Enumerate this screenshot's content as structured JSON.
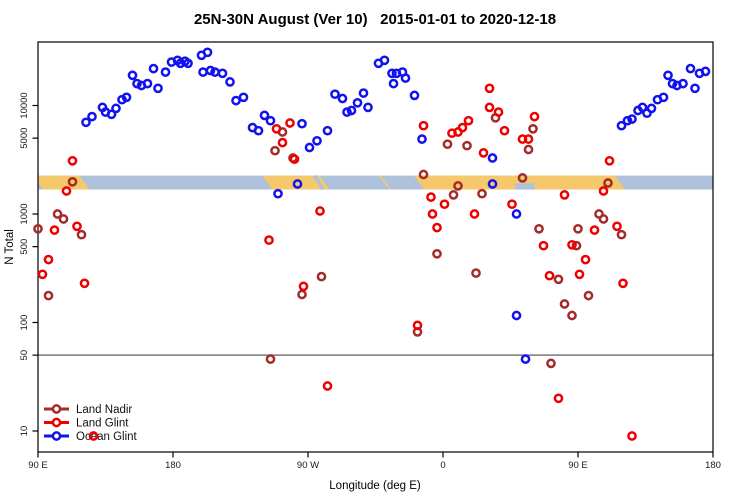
{
  "title": "25N-30N August (Ver 10)   2015-01-01 to 2020-12-18",
  "chart_data": {
    "type": "scatter",
    "title": "25N-30N August (Ver 10)  2015-01-01 to 2020-12-18",
    "xlabel": "Longitude (deg E)",
    "ylabel": "N Total",
    "x_axis": {
      "note": "axis wraps eastward from 90E; positions stored as deg east of 0 continuing past 360",
      "range": [
        90,
        540
      ],
      "ticks": [
        90,
        180,
        270,
        360,
        450,
        540
      ],
      "tick_labels": [
        "90 E",
        "180",
        "90 W",
        "0",
        "90 E",
        "180"
      ]
    },
    "y_axis": {
      "scale": "log",
      "ticks": [
        10,
        50,
        100,
        500,
        1000,
        5000,
        10000
      ],
      "tick_labels": [
        "10",
        "50",
        "100",
        "500",
        "1000",
        "5000",
        "10000"
      ],
      "range": [
        8,
        40000
      ]
    },
    "reference_line": {
      "value": 50,
      "color": "#8A8A8A"
    },
    "land_ocean_band": {
      "value_range": [
        1680,
        2260
      ],
      "ocean_color": "#AFC2DC",
      "land_color": "#F5C86C",
      "land_segments_lon": [
        [
          90,
          121
        ],
        [
          243,
          276
        ],
        [
          278,
          281
        ],
        [
          320.7,
          322
        ],
        [
          344,
          478
        ]
      ],
      "ocean_diagonal_slash_lon": 277,
      "ocean_bottom_notch_lon": [
        408,
        421
      ]
    },
    "legend_position": "bottom-left",
    "series": [
      {
        "name": "Land Nadir",
        "color": "#A52A2A",
        "points": [
          [
            90,
            730
          ],
          [
            97,
            177
          ],
          [
            103,
            1000
          ],
          [
            107,
            900
          ],
          [
            113,
            1980
          ],
          [
            119,
            645
          ],
          [
            245,
            46
          ],
          [
            248,
            3830
          ],
          [
            253,
            5700
          ],
          [
            260,
            3280
          ],
          [
            266,
            181
          ],
          [
            279,
            265
          ],
          [
            343,
            82
          ],
          [
            347,
            2310
          ],
          [
            356,
            430
          ],
          [
            363,
            4400
          ],
          [
            367,
            1500
          ],
          [
            370,
            1815
          ],
          [
            376,
            4260
          ],
          [
            382,
            285
          ],
          [
            386,
            1540
          ],
          [
            395,
            7700
          ],
          [
            413,
            2150
          ],
          [
            417,
            3930
          ],
          [
            420,
            6100
          ],
          [
            424,
            730
          ],
          [
            432,
            42
          ],
          [
            437,
            250
          ],
          [
            441,
            148
          ],
          [
            446,
            116
          ],
          [
            449,
            510
          ],
          [
            450,
            730
          ],
          [
            457,
            177
          ],
          [
            464,
            1000
          ],
          [
            467,
            900
          ],
          [
            470,
            1930
          ],
          [
            479,
            645
          ]
        ]
      },
      {
        "name": "Land Glint",
        "color": "#EE0000",
        "points": [
          [
            93,
            278
          ],
          [
            97,
            380
          ],
          [
            101,
            710
          ],
          [
            109,
            1630
          ],
          [
            113,
            3090
          ],
          [
            116,
            770
          ],
          [
            121,
            230
          ],
          [
            127,
            9
          ],
          [
            244,
            575
          ],
          [
            249,
            6100
          ],
          [
            253,
            4550
          ],
          [
            258,
            6900
          ],
          [
            261,
            3200
          ],
          [
            267,
            215
          ],
          [
            278,
            1065
          ],
          [
            283,
            26
          ],
          [
            343,
            94
          ],
          [
            347,
            6520
          ],
          [
            352,
            1430
          ],
          [
            353,
            1000
          ],
          [
            356,
            750
          ],
          [
            361,
            1230
          ],
          [
            366,
            5560
          ],
          [
            370,
            5700
          ],
          [
            373,
            6260
          ],
          [
            377,
            7250
          ],
          [
            381,
            1000
          ],
          [
            387,
            3660
          ],
          [
            391,
            14400
          ],
          [
            391,
            9600
          ],
          [
            397,
            8700
          ],
          [
            401,
            5860
          ],
          [
            406,
            1230
          ],
          [
            413,
            4900
          ],
          [
            417,
            4900
          ],
          [
            421,
            7900
          ],
          [
            427,
            510
          ],
          [
            431,
            270
          ],
          [
            437,
            20
          ],
          [
            441,
            1500
          ],
          [
            446,
            520
          ],
          [
            451,
            278
          ],
          [
            455,
            380
          ],
          [
            461,
            710
          ],
          [
            467,
            1630
          ],
          [
            471,
            3090
          ],
          [
            476,
            770
          ],
          [
            480,
            230
          ],
          [
            486,
            9
          ]
        ]
      },
      {
        "name": "Ocean Glint",
        "color": "#1212EE",
        "points": [
          [
            122,
            7000
          ],
          [
            126,
            7900
          ],
          [
            133,
            9600
          ],
          [
            135,
            8700
          ],
          [
            139,
            8300
          ],
          [
            142,
            9400
          ],
          [
            146,
            11300
          ],
          [
            149,
            11900
          ],
          [
            153,
            19000
          ],
          [
            156,
            15900
          ],
          [
            159,
            15300
          ],
          [
            163,
            15900
          ],
          [
            167,
            21900
          ],
          [
            170,
            14400
          ],
          [
            175,
            20300
          ],
          [
            179,
            25100
          ],
          [
            183,
            26100
          ],
          [
            185,
            24500
          ],
          [
            188,
            25600
          ],
          [
            190,
            24500
          ],
          [
            199,
            29000
          ],
          [
            200,
            20300
          ],
          [
            203,
            30900
          ],
          [
            205,
            21000
          ],
          [
            208,
            20300
          ],
          [
            213,
            19800
          ],
          [
            218,
            16500
          ],
          [
            222,
            11100
          ],
          [
            227,
            11900
          ],
          [
            233,
            6260
          ],
          [
            237,
            5860
          ],
          [
            241,
            8100
          ],
          [
            245,
            7250
          ],
          [
            250,
            1540
          ],
          [
            263,
            1890
          ],
          [
            266,
            6800
          ],
          [
            271,
            4100
          ],
          [
            276,
            4730
          ],
          [
            283,
            5860
          ],
          [
            288,
            12700
          ],
          [
            293,
            11600
          ],
          [
            296,
            8700
          ],
          [
            299,
            9000
          ],
          [
            303,
            10600
          ],
          [
            307,
            13000
          ],
          [
            310,
            9600
          ],
          [
            317,
            24500
          ],
          [
            321,
            26100
          ],
          [
            326,
            19800
          ],
          [
            327,
            15900
          ],
          [
            329,
            19800
          ],
          [
            333,
            20300
          ],
          [
            335,
            17900
          ],
          [
            341,
            12400
          ],
          [
            346,
            4900
          ],
          [
            393,
            3280
          ],
          [
            393,
            1890
          ],
          [
            409,
            1000
          ],
          [
            409,
            116
          ],
          [
            415,
            46
          ],
          [
            479,
            6520
          ],
          [
            483,
            7250
          ],
          [
            486,
            7500
          ],
          [
            490,
            9000
          ],
          [
            493,
            9600
          ],
          [
            496,
            8500
          ],
          [
            499,
            9400
          ],
          [
            503,
            11300
          ],
          [
            507,
            11900
          ],
          [
            510,
            19000
          ],
          [
            513,
            15900
          ],
          [
            516,
            15300
          ],
          [
            520,
            15900
          ],
          [
            525,
            21900
          ],
          [
            528,
            14400
          ],
          [
            531,
            19800
          ],
          [
            535,
            20600
          ]
        ]
      }
    ]
  }
}
